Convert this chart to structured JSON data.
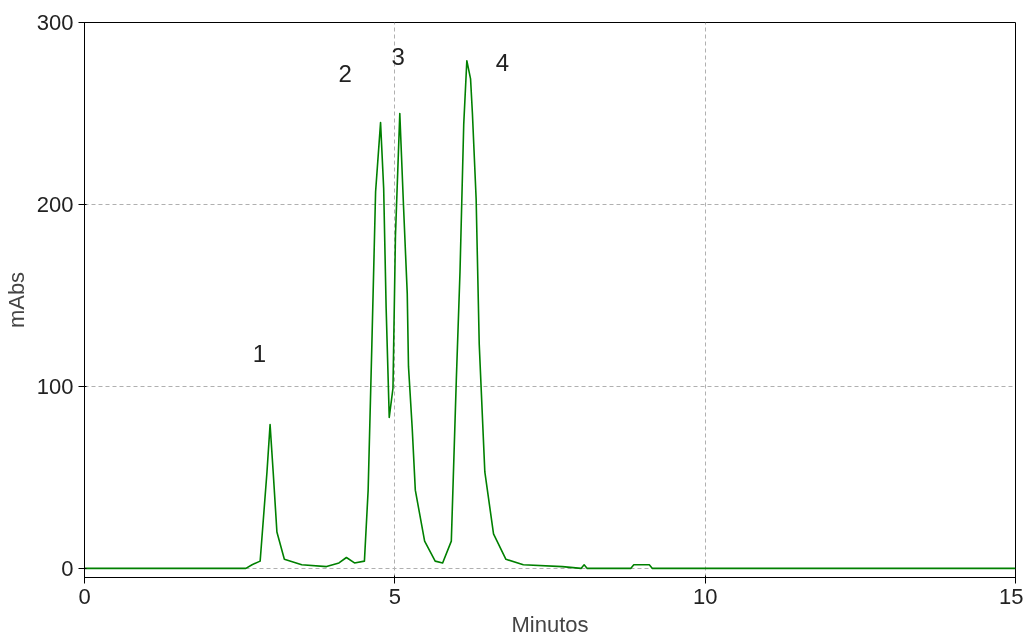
{
  "chart_data": {
    "type": "line",
    "xlabel": "Minutos",
    "ylabel": "mAbs",
    "xlim": [
      0,
      15
    ],
    "ylim": [
      -5,
      300
    ],
    "xticks": [
      0,
      5,
      10,
      15
    ],
    "yticks": [
      0,
      100,
      200,
      300
    ],
    "grid": true,
    "line_style": "solid",
    "marker": "none",
    "series": [
      {
        "color": "#008000",
        "x": [
          0,
          2.6,
          2.7,
          2.83,
          2.94,
          2.99,
          3.04,
          3.1,
          3.22,
          3.5,
          3.9,
          4.1,
          4.22,
          4.35,
          4.51,
          4.57,
          4.63,
          4.69,
          4.77,
          4.82,
          4.86,
          4.91,
          4.97,
          5.01,
          5.08,
          5.14,
          5.2,
          5.22,
          5.28,
          5.33,
          5.48,
          5.65,
          5.77,
          5.91,
          5.99,
          6.05,
          6.11,
          6.16,
          6.22,
          6.25,
          6.31,
          6.36,
          6.45,
          6.59,
          6.79,
          7.07,
          7.7,
          8.0,
          8.05,
          8.1,
          8.8,
          8.85,
          9.1,
          9.15,
          15
        ],
        "values": [
          0,
          0,
          2,
          4,
          53,
          79,
          53,
          20,
          5,
          2,
          1,
          3,
          6,
          3,
          4,
          43,
          123,
          207,
          245,
          209,
          143,
          83,
          99,
          183,
          250,
          199,
          151,
          111,
          77,
          43,
          15,
          4,
          3,
          15,
          103,
          163,
          244,
          279,
          269,
          250,
          203,
          123,
          53,
          19,
          5,
          2,
          1,
          0,
          2,
          0,
          0,
          2,
          2,
          0,
          0
        ]
      }
    ],
    "annotations": [
      "1",
      "2",
      "3",
      "4"
    ]
  }
}
